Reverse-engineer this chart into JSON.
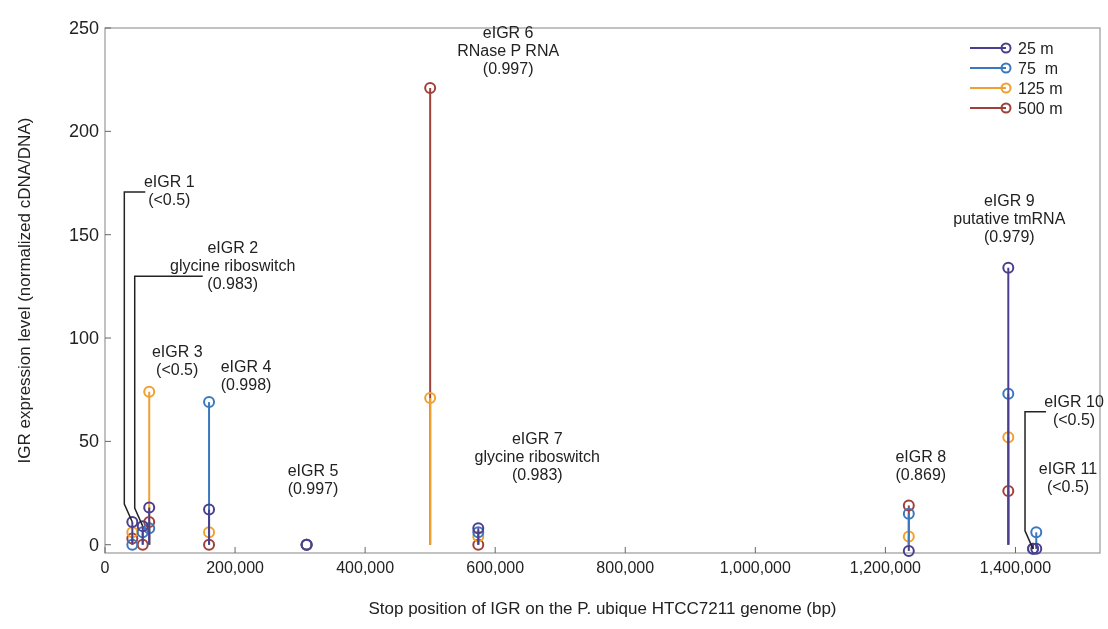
{
  "chart_data": {
    "type": "lollipop",
    "xlabel": "Stop position of IGR on the P. ubique HTCC7211 genome (bp)",
    "ylabel": "IGR expression level (normalized cDNA/DNA)",
    "x": [
      42000,
      58000,
      68000,
      160000,
      310000,
      500000,
      574000,
      1236000,
      1389000,
      1427000,
      1432000
    ],
    "series": [
      {
        "name": "25 m",
        "color": "#4a3f8f",
        "values": [
          11,
          9,
          18,
          17,
          0,
          null,
          8,
          -3,
          134,
          -2,
          -2
        ]
      },
      {
        "name": "75  m",
        "color": "#3a78c0",
        "values": [
          0,
          6,
          8,
          69,
          0,
          null,
          6,
          15,
          73,
          -2,
          6
        ]
      },
      {
        "name": "125 m",
        "color": "#f0a030",
        "values": [
          6,
          null,
          74,
          6,
          0,
          71,
          4,
          4,
          52,
          null,
          null
        ]
      },
      {
        "name": "500 m",
        "color": "#a0403a",
        "values": [
          3,
          0,
          11,
          0,
          0,
          221,
          0,
          19,
          26,
          null,
          null
        ]
      }
    ],
    "annotations": [
      {
        "text": "eIGR 1\n(<0.5)",
        "x": 42000,
        "y": 11
      },
      {
        "text": "eIGR 2\nglycine riboswitch\n(0.983)",
        "x": 58000,
        "y": 9
      },
      {
        "text": "eIGR 3\n(<0.5)",
        "x": 68000,
        "y": 74
      },
      {
        "text": "eIGR 4\n(0.998)",
        "x": 160000,
        "y": 69
      },
      "eIGR 5\n(0.997)",
      {
        "text": "eIGR 6\nRNase P RNA\n(0.997)",
        "x": 500000,
        "y": 221
      },
      {
        "text": "eIGR 7\nglycine riboswitch\n(0.983)",
        "x": 574000,
        "y": 8
      },
      {
        "text": "eIGR 8\n(0.869)",
        "x": 1236000,
        "y": 19
      },
      {
        "text": "eIGR 9\nputative tmRNA\n(0.979)",
        "x": 1389000,
        "y": 134
      },
      {
        "text": "eIGR 10\n(<0.5)",
        "x": 1427000,
        "y": -2
      },
      "eIGR 11\n(<0.5)"
    ],
    "xlim": [
      0,
      1530000
    ],
    "ylim": [
      -4,
      250
    ],
    "xticks": [
      {
        "value": 0,
        "label": "0"
      },
      {
        "value": 200000,
        "label": "200,000"
      },
      {
        "value": 400000,
        "label": "400,000"
      },
      {
        "value": 600000,
        "label": "600,000"
      },
      {
        "value": 800000,
        "label": "800,000"
      },
      {
        "value": 1000000,
        "label": "1,000,000"
      },
      {
        "value": 1200000,
        "label": "1,200,000"
      },
      {
        "value": 1400000,
        "label": "1,400,000"
      }
    ],
    "yticks": [
      0,
      50,
      100,
      150,
      200,
      250
    ],
    "legend": "top right",
    "marker": "circle",
    "grid": false
  }
}
